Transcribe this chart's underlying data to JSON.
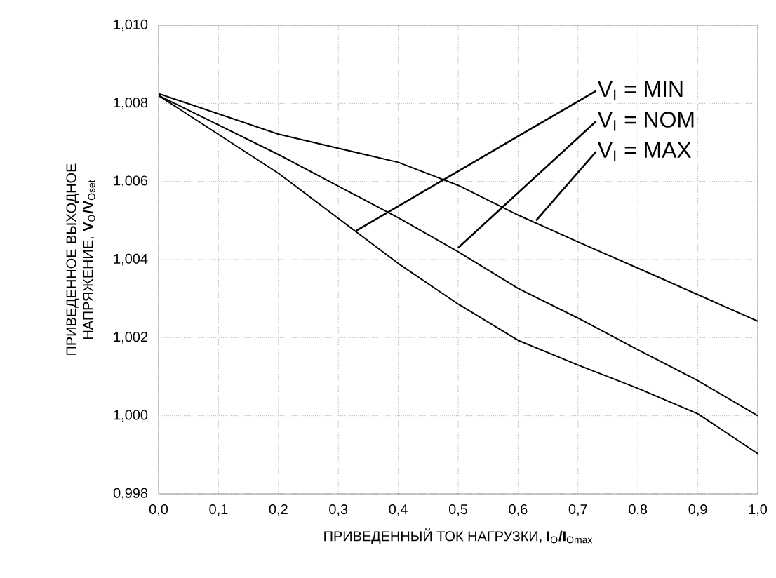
{
  "chart_data": {
    "type": "line",
    "xlabel": "ПРИВЕДЕННЫЙ ТОК НАГРУЗКИ, **I**$_{O}$**/I**$_{Omax}$",
    "ylabel": "ПРИВЕДЕННОЕ ВЫХОДНОЕ НАПРЯЖЕНИЕ, **V**$_{O}$**/V**$_{Oset}$",
    "x": [
      0,
      0.2,
      0.4,
      0.5,
      0.6,
      0.7,
      0.8,
      0.9,
      1.0
    ],
    "series": [
      {
        "color": "#000000",
        "values": [
          1.00825,
          1.00721,
          1.00649,
          1.0059,
          1.00514,
          1.00445,
          1.00378,
          1.0031,
          1.00242
        ]
      },
      {
        "color": "#000000",
        "values": [
          1.0082,
          1.00669,
          1.00507,
          1.0042,
          1.00326,
          1.0025,
          1.00169,
          1.0009,
          1.0
        ]
      },
      {
        "color": "#000000",
        "values": [
          1.0082,
          1.00621,
          1.0039,
          1.00286,
          1.00193,
          1.0013,
          1.0007,
          1.00005,
          0.99903
        ]
      }
    ],
    "xlim": [
      0,
      1
    ],
    "ylim": [
      0.998,
      1.01
    ],
    "xticks": [
      {
        "value": 0,
        "label": "0,0"
      },
      {
        "value": 0.1,
        "label": "0,1"
      },
      {
        "value": 0.2,
        "label": "0,2"
      },
      {
        "value": 0.3,
        "label": "0,3"
      },
      {
        "value": 0.4,
        "label": "0,4"
      },
      {
        "value": 0.5,
        "label": "0,5"
      },
      {
        "value": 0.6,
        "label": "0,6"
      },
      {
        "value": 0.7,
        "label": "0,7"
      },
      {
        "value": 0.8,
        "label": "0,8"
      },
      {
        "value": 0.9,
        "label": "0,9"
      },
      {
        "value": 1.0,
        "label": "1,0"
      }
    ],
    "yticks": [
      {
        "value": 0.998,
        "label": "0,998"
      },
      {
        "value": 1.0,
        "label": "1,000"
      },
      {
        "value": 1.002,
        "label": "1,002"
      },
      {
        "value": 1.004,
        "label": "1,004"
      },
      {
        "value": 1.006,
        "label": "1,006"
      },
      {
        "value": 1.008,
        "label": "1,008"
      },
      {
        "value": 1.01,
        "label": "1,010"
      }
    ],
    "annotations": [
      {
        "text": "V$_{I}$ = MIN",
        "x": 0.33,
        "y": 1.00474
      },
      {
        "text": "V$_{I}$ = NOM",
        "x": 0.5,
        "y": 1.0043
      },
      {
        "text": "V$_{I}$ = MAX",
        "x": 0.63,
        "y": 1.005
      }
    ],
    "grid": true,
    "line_style": "solid"
  }
}
